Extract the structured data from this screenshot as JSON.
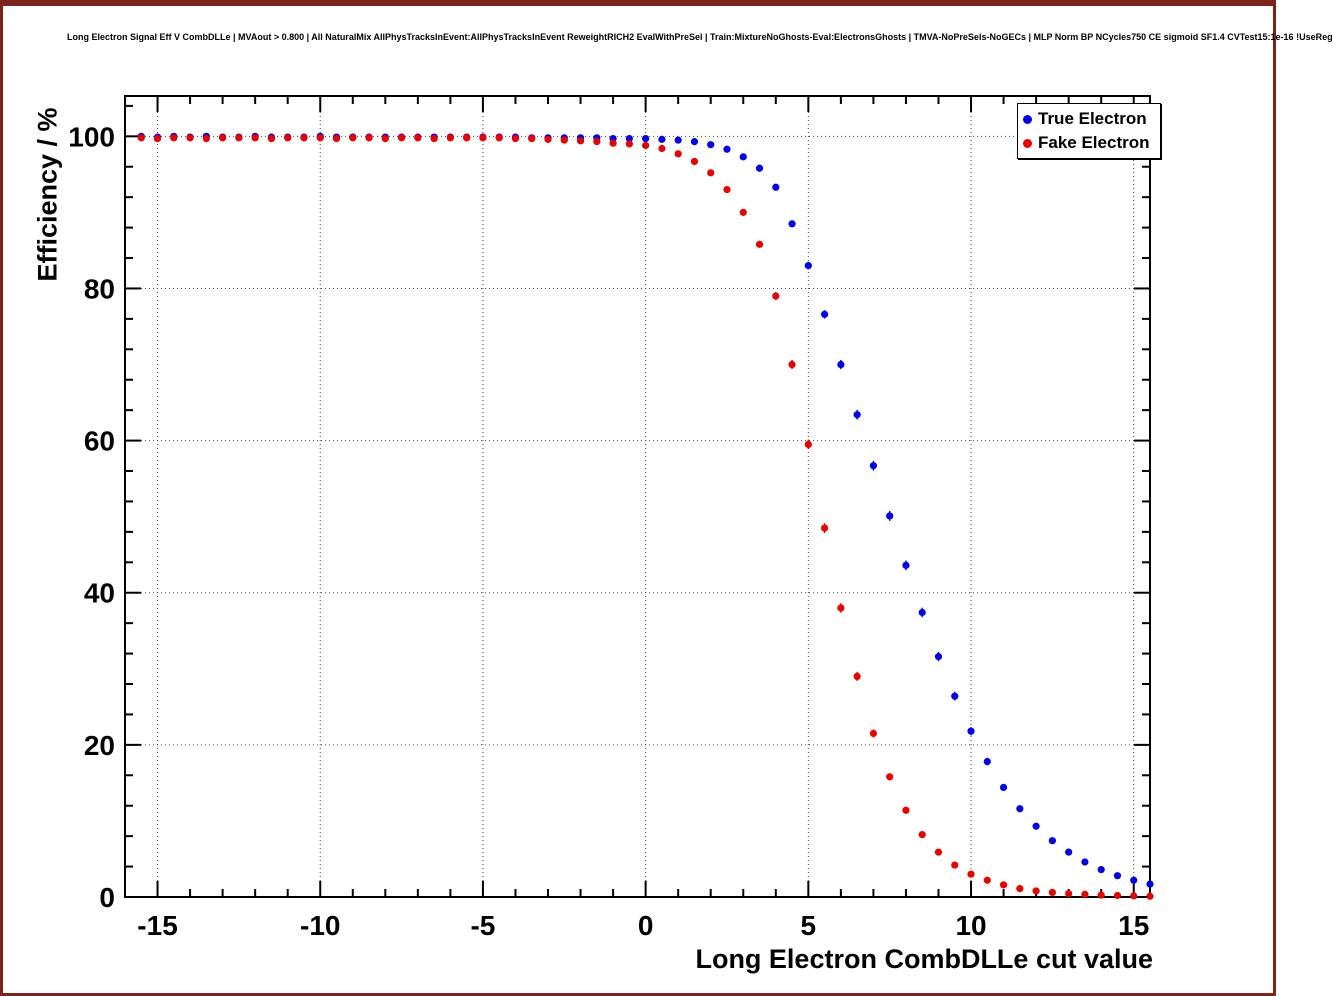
{
  "legend": {
    "entries": [
      {
        "label": "True Electron",
        "color": "#0000ee"
      },
      {
        "label": "Fake Electron",
        "color": "#ee0000"
      }
    ]
  },
  "chart_data": {
    "type": "scatter",
    "title": "Long Electron Signal Eff V CombDLLe | MVAout > 0.800 | All NaturalMix AllPhysTracksInEvent:AllPhysTracksInEvent ReweightRICH2 EvalWithPreSel | Train:MixtureNoGhosts-Eval:ElectronsGhosts | TMVA-NoPreSels-NoGECs | MLP Norm BP NCycles750 CE sigmoid SF1.4 CVTest15:1e-16 !UseReg",
    "xlabel": "Long Electron CombDLLe cut value",
    "ylabel": "Efficiency / %",
    "xlim": [
      -16,
      15.5
    ],
    "ylim": [
      0,
      105.3
    ],
    "xticks": [
      -15,
      -10,
      -5,
      0,
      5,
      10,
      15
    ],
    "yticks": [
      0,
      20,
      40,
      60,
      80,
      100
    ],
    "x_minor_step": 1,
    "y_minor_step": 4,
    "grid": "dotted",
    "legend_position": "top-right",
    "marker": "filled-circle",
    "x": [
      -15.5,
      -15,
      -14.5,
      -14,
      -13.5,
      -13,
      -12.5,
      -12,
      -11.5,
      -11,
      -10.5,
      -10,
      -9.5,
      -9,
      -8.5,
      -8,
      -7.5,
      -7,
      -6.5,
      -6,
      -5.5,
      -5,
      -4.5,
      -4,
      -3.5,
      -3,
      -2.5,
      -2,
      -1.5,
      -1,
      -0.5,
      0,
      0.5,
      1,
      1.5,
      2,
      2.5,
      3,
      3.5,
      4,
      4.5,
      5,
      5.5,
      6,
      6.5,
      7,
      7.5,
      8,
      8.5,
      9,
      9.5,
      10,
      10.5,
      11,
      11.5,
      12,
      12.5,
      13,
      13.5,
      14,
      14.5,
      15,
      15.5
    ],
    "series": [
      {
        "name": "True Electron",
        "color": "#0000ee",
        "values": [
          100,
          99.9,
          100,
          99.9,
          100,
          99.9,
          99.9,
          100,
          99.9,
          99.9,
          99.9,
          100,
          99.9,
          99.9,
          99.9,
          99.9,
          99.9,
          99.9,
          99.9,
          99.9,
          99.9,
          99.9,
          99.9,
          99.9,
          99.8,
          99.8,
          99.8,
          99.8,
          99.8,
          99.7,
          99.7,
          99.7,
          99.6,
          99.5,
          99.3,
          98.9,
          98.3,
          97.3,
          95.8,
          93.3,
          88.5,
          83.0,
          76.6,
          70.0,
          63.4,
          56.7,
          50.1,
          43.6,
          37.4,
          31.6,
          26.4,
          21.8,
          17.8,
          14.4,
          11.6,
          9.3,
          7.4,
          5.9,
          4.6,
          3.6,
          2.8,
          2.2,
          1.7
        ]
      },
      {
        "name": "Fake Electron",
        "color": "#ee0000",
        "values": [
          99.8,
          99.7,
          99.8,
          99.8,
          99.7,
          99.8,
          99.8,
          99.8,
          99.7,
          99.8,
          99.8,
          99.8,
          99.7,
          99.8,
          99.8,
          99.7,
          99.8,
          99.8,
          99.7,
          99.8,
          99.8,
          99.8,
          99.8,
          99.7,
          99.7,
          99.6,
          99.5,
          99.4,
          99.3,
          99.1,
          99.0,
          98.8,
          98.4,
          97.7,
          96.7,
          95.2,
          93.0,
          90.0,
          85.8,
          79.0,
          70.0,
          59.5,
          48.5,
          38.0,
          29.0,
          21.5,
          15.8,
          11.4,
          8.2,
          5.9,
          4.2,
          3.0,
          2.2,
          1.6,
          1.1,
          0.8,
          0.6,
          0.45,
          0.35,
          0.25,
          0.2,
          0.15,
          0.1
        ]
      }
    ]
  }
}
